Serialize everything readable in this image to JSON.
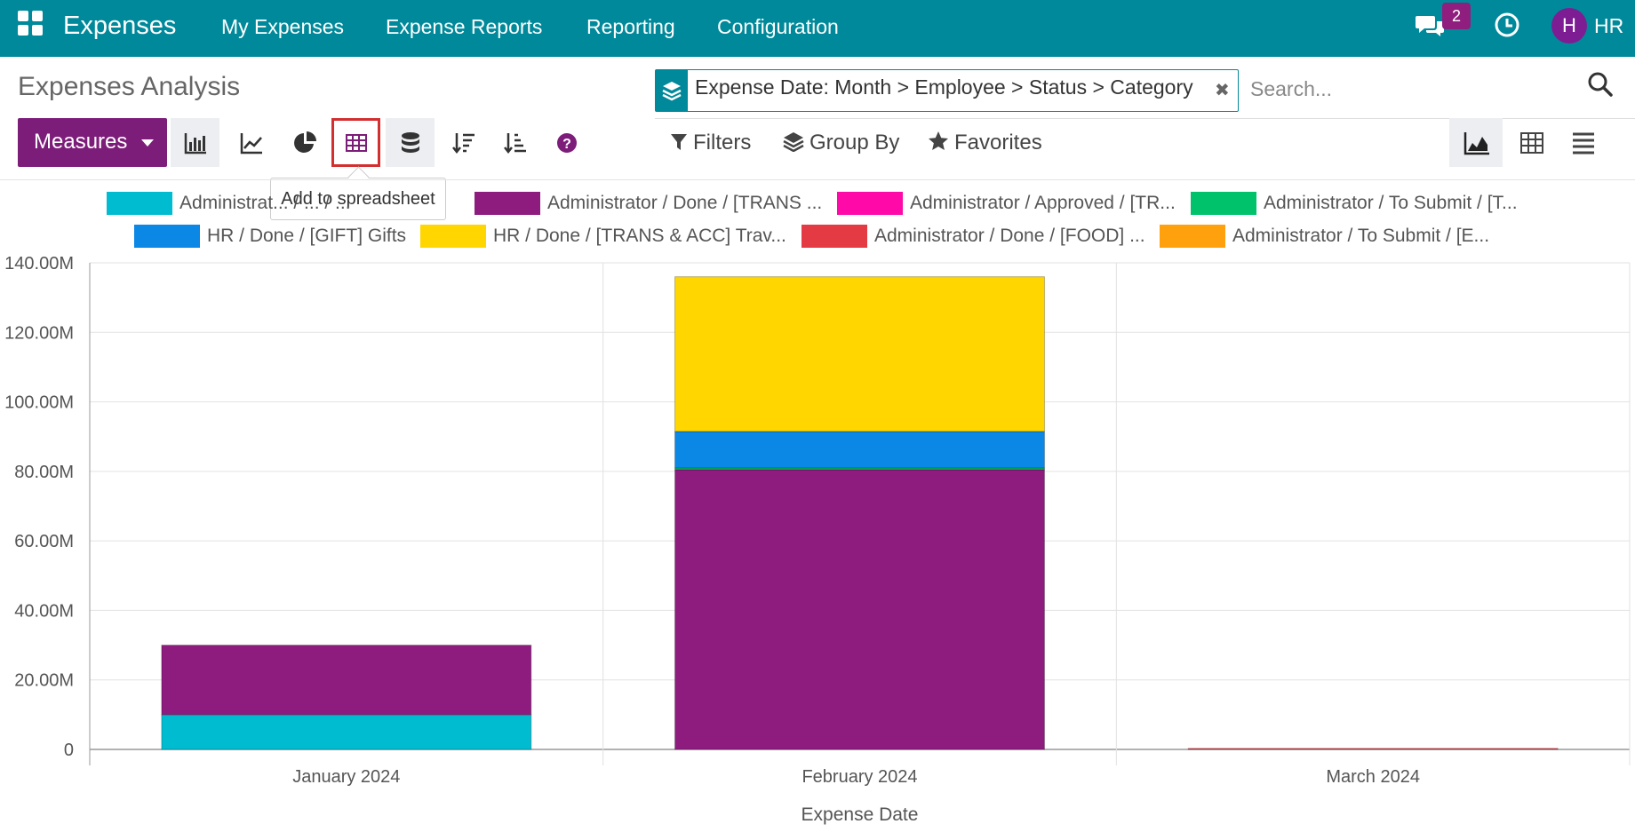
{
  "topbar": {
    "brand": "Expenses",
    "menu": [
      "My Expenses",
      "Expense Reports",
      "Reporting",
      "Configuration"
    ],
    "message_count": "2",
    "avatar_letter": "H",
    "user": "HR"
  },
  "page_title": "Expenses Analysis",
  "search": {
    "facet": "Expense Date: Month > Employee > Status > Category",
    "placeholder": "Search..."
  },
  "toolbar": {
    "measures_label": "Measures",
    "tooltip": "Add to spreadsheet",
    "filters_label": "Filters",
    "group_by_label": "Group By",
    "favorites_label": "Favorites"
  },
  "colors": {
    "topbar": "#00899a",
    "accent": "#7d1d7a"
  },
  "chart_data": {
    "type": "bar",
    "stacked": true,
    "xlabel": "Expense Date",
    "ylabel": "",
    "ylim": [
      0,
      140000000
    ],
    "yticks": [
      "0",
      "20.00M",
      "40.00M",
      "60.00M",
      "80.00M",
      "100.00M",
      "120.00M",
      "140.00M"
    ],
    "categories": [
      "January 2024",
      "February 2024",
      "March 2024"
    ],
    "legend_position": "top",
    "series": [
      {
        "name": "Administrat... / ... / ...",
        "color": "#00bcd0",
        "values": [
          10000000,
          0,
          0
        ]
      },
      {
        "name": "Administrator / Done / [TRANS ...",
        "color": "#8e1c7e",
        "values": [
          20000000,
          80500000,
          0
        ]
      },
      {
        "name": "Administrator / Approved / [TR...",
        "color": "#ff0aa8",
        "values": [
          0,
          0,
          0
        ]
      },
      {
        "name": "Administrator / To Submit / [T...",
        "color": "#00c26b",
        "values": [
          0,
          500000,
          0
        ]
      },
      {
        "name": "HR / Done / [GIFT] Gifts",
        "color": "#0b87e6",
        "values": [
          0,
          10500000,
          0
        ]
      },
      {
        "name": "HR / Done / [TRANS & ACC] Trav...",
        "color": "#ffd600",
        "values": [
          0,
          44500000,
          0
        ]
      },
      {
        "name": "Administrator / Done / [FOOD] ...",
        "color": "#e33a44",
        "values": [
          0,
          0,
          300000
        ]
      },
      {
        "name": "Administrator / To Submit / [E...",
        "color": "#ffa10c",
        "values": [
          0,
          0,
          0
        ]
      }
    ]
  }
}
